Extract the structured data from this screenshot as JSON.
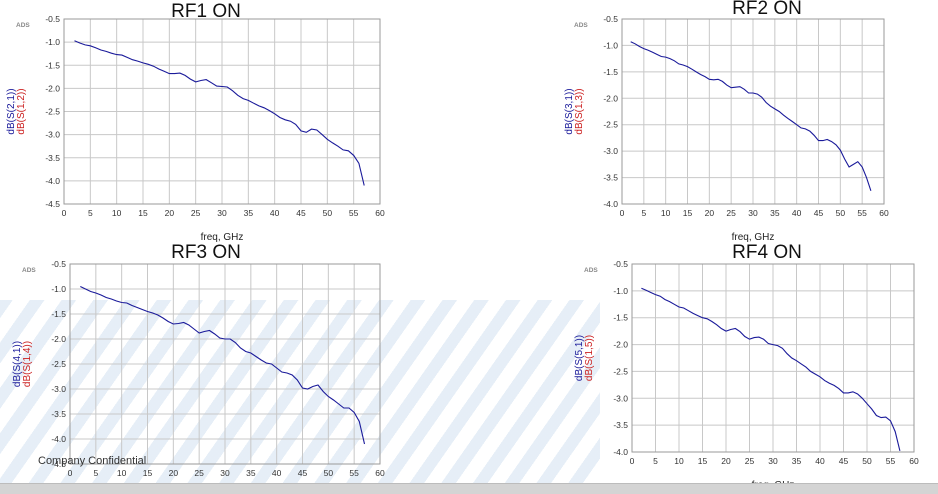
{
  "watermark": "Company Confidential",
  "ads_label": "ADS",
  "chart_data": [
    {
      "type": "line",
      "title": "RF1 ON",
      "xlabel": "freq, GHz",
      "ylabels": [
        "dB(S(2,1))",
        "dB(S(1,2))"
      ],
      "xlim": [
        0,
        60
      ],
      "ylim": [
        -4.5,
        -0.5
      ],
      "xticks": [
        0,
        5,
        10,
        15,
        20,
        25,
        30,
        35,
        40,
        45,
        50,
        55,
        60
      ],
      "yticks": [
        -0.5,
        -1.0,
        -1.5,
        -2.0,
        -2.5,
        -3.0,
        -3.5,
        -4.0,
        -4.5
      ],
      "series": [
        {
          "color": "#1a1a9a",
          "x": [
            2,
            3,
            4,
            5,
            6,
            7,
            8,
            9,
            10,
            11,
            12,
            13,
            14,
            15,
            16,
            17,
            18,
            19,
            20,
            21,
            22,
            23,
            24,
            25,
            26,
            27,
            28,
            29,
            30,
            31,
            32,
            33,
            34,
            35,
            36,
            37,
            38,
            39,
            40,
            41,
            42,
            43,
            44,
            45,
            46,
            47,
            48,
            49,
            50,
            51,
            52,
            53,
            54,
            55,
            56,
            57
          ],
          "y": [
            -0.97,
            -1.02,
            -1.06,
            -1.08,
            -1.12,
            -1.17,
            -1.2,
            -1.24,
            -1.27,
            -1.28,
            -1.33,
            -1.38,
            -1.41,
            -1.45,
            -1.48,
            -1.52,
            -1.58,
            -1.63,
            -1.68,
            -1.68,
            -1.67,
            -1.72,
            -1.8,
            -1.86,
            -1.83,
            -1.81,
            -1.88,
            -1.95,
            -1.96,
            -1.97,
            -2.05,
            -2.15,
            -2.22,
            -2.26,
            -2.32,
            -2.38,
            -2.42,
            -2.48,
            -2.55,
            -2.63,
            -2.68,
            -2.71,
            -2.78,
            -2.92,
            -2.95,
            -2.88,
            -2.9,
            -3.0,
            -3.1,
            -3.18,
            -3.25,
            -3.33,
            -3.35,
            -3.45,
            -3.62,
            -4.1
          ]
        }
      ]
    },
    {
      "type": "line",
      "title": "RF2 ON",
      "xlabel": "freq, GHz",
      "ylabels": [
        "dB(S(3,1))",
        "dB(S(1,3))"
      ],
      "xlim": [
        0,
        60
      ],
      "ylim": [
        -4.0,
        -0.5
      ],
      "xticks": [
        0,
        5,
        10,
        15,
        20,
        25,
        30,
        35,
        40,
        45,
        50,
        55,
        60
      ],
      "yticks": [
        -0.5,
        -1.0,
        -1.5,
        -2.0,
        -2.5,
        -3.0,
        -3.5,
        -4.0
      ],
      "series": [
        {
          "color": "#1a1a9a",
          "x": [
            2,
            3,
            4,
            5,
            6,
            7,
            8,
            9,
            10,
            11,
            12,
            13,
            14,
            15,
            16,
            17,
            18,
            19,
            20,
            21,
            22,
            23,
            24,
            25,
            26,
            27,
            28,
            29,
            30,
            31,
            32,
            33,
            34,
            35,
            36,
            37,
            38,
            39,
            40,
            41,
            42,
            43,
            44,
            45,
            46,
            47,
            48,
            49,
            50,
            51,
            52,
            53,
            54,
            55,
            56,
            57
          ],
          "y": [
            -0.93,
            -0.97,
            -1.02,
            -1.06,
            -1.09,
            -1.13,
            -1.17,
            -1.21,
            -1.22,
            -1.25,
            -1.29,
            -1.35,
            -1.37,
            -1.4,
            -1.45,
            -1.5,
            -1.55,
            -1.59,
            -1.64,
            -1.65,
            -1.64,
            -1.68,
            -1.75,
            -1.8,
            -1.79,
            -1.78,
            -1.83,
            -1.9,
            -1.9,
            -1.92,
            -1.98,
            -2.08,
            -2.15,
            -2.2,
            -2.25,
            -2.32,
            -2.38,
            -2.44,
            -2.5,
            -2.56,
            -2.58,
            -2.62,
            -2.7,
            -2.8,
            -2.8,
            -2.78,
            -2.82,
            -2.88,
            -2.98,
            -3.15,
            -3.3,
            -3.25,
            -3.2,
            -3.3,
            -3.5,
            -3.75
          ]
        }
      ]
    },
    {
      "type": "line",
      "title": "RF3 ON",
      "xlabel": "",
      "ylabels": [
        "dB(S(4,1))",
        "dB(S(1,4))"
      ],
      "xlim": [
        0,
        60
      ],
      "ylim": [
        -4.5,
        -0.5
      ],
      "xticks": [
        0,
        5,
        10,
        15,
        20,
        25,
        30,
        35,
        40,
        45,
        50,
        55,
        60
      ],
      "yticks": [
        -0.5,
        -1.0,
        -1.5,
        -2.0,
        -2.5,
        -3.0,
        -3.5,
        -4.0,
        -4.5
      ],
      "series": [
        {
          "color": "#1a1a9a",
          "x": [
            2,
            3,
            4,
            5,
            6,
            7,
            8,
            9,
            10,
            11,
            12,
            13,
            14,
            15,
            16,
            17,
            18,
            19,
            20,
            21,
            22,
            23,
            24,
            25,
            26,
            27,
            28,
            29,
            30,
            31,
            32,
            33,
            34,
            35,
            36,
            37,
            38,
            39,
            40,
            41,
            42,
            43,
            44,
            45,
            46,
            47,
            48,
            49,
            50,
            51,
            52,
            53,
            54,
            55,
            56,
            57
          ],
          "y": [
            -0.95,
            -1.0,
            -1.05,
            -1.08,
            -1.12,
            -1.17,
            -1.2,
            -1.24,
            -1.27,
            -1.28,
            -1.33,
            -1.37,
            -1.41,
            -1.45,
            -1.48,
            -1.52,
            -1.58,
            -1.65,
            -1.7,
            -1.69,
            -1.67,
            -1.72,
            -1.8,
            -1.88,
            -1.85,
            -1.83,
            -1.9,
            -1.98,
            -2.0,
            -2.0,
            -2.07,
            -2.18,
            -2.25,
            -2.28,
            -2.35,
            -2.42,
            -2.48,
            -2.5,
            -2.58,
            -2.66,
            -2.68,
            -2.72,
            -2.82,
            -2.98,
            -3.0,
            -2.95,
            -2.92,
            -3.05,
            -3.15,
            -3.22,
            -3.3,
            -3.38,
            -3.38,
            -3.47,
            -3.65,
            -4.1
          ]
        }
      ]
    },
    {
      "type": "line",
      "title": "RF4 ON",
      "xlabel": "freq, GHz",
      "ylabels": [
        "dB(S(5,1))",
        "dB(S(1,5))"
      ],
      "xlim": [
        0,
        60
      ],
      "ylim": [
        -4.0,
        -0.5
      ],
      "xticks": [
        0,
        5,
        10,
        15,
        20,
        25,
        30,
        35,
        40,
        45,
        50,
        55,
        60
      ],
      "yticks": [
        -0.5,
        -1.0,
        -1.5,
        -2.0,
        -2.5,
        -3.0,
        -3.5,
        -4.0
      ],
      "series": [
        {
          "color": "#1a1a9a",
          "x": [
            2,
            3,
            4,
            5,
            6,
            7,
            8,
            9,
            10,
            11,
            12,
            13,
            14,
            15,
            16,
            17,
            18,
            19,
            20,
            21,
            22,
            23,
            24,
            25,
            26,
            27,
            28,
            29,
            30,
            31,
            32,
            33,
            34,
            35,
            36,
            37,
            38,
            39,
            40,
            41,
            42,
            43,
            44,
            45,
            46,
            47,
            48,
            49,
            50,
            51,
            52,
            53,
            54,
            55,
            56,
            57
          ],
          "y": [
            -0.95,
            -0.99,
            -1.03,
            -1.07,
            -1.1,
            -1.16,
            -1.2,
            -1.25,
            -1.3,
            -1.32,
            -1.37,
            -1.42,
            -1.46,
            -1.5,
            -1.52,
            -1.57,
            -1.63,
            -1.7,
            -1.75,
            -1.72,
            -1.7,
            -1.76,
            -1.85,
            -1.9,
            -1.87,
            -1.86,
            -1.9,
            -1.98,
            -2.0,
            -2.02,
            -2.07,
            -2.17,
            -2.25,
            -2.3,
            -2.36,
            -2.42,
            -2.5,
            -2.55,
            -2.6,
            -2.67,
            -2.72,
            -2.76,
            -2.82,
            -2.9,
            -2.9,
            -2.88,
            -2.92,
            -3.0,
            -3.1,
            -3.2,
            -3.32,
            -3.36,
            -3.35,
            -3.42,
            -3.62,
            -3.98
          ]
        }
      ]
    }
  ]
}
